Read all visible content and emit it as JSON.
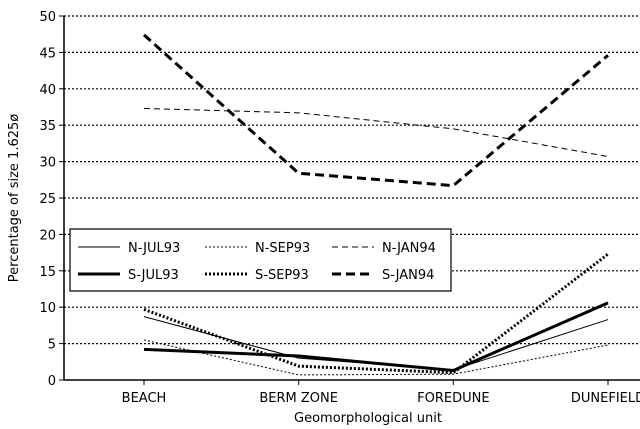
{
  "chart_data": {
    "type": "line",
    "xlabel": "Geomorphological unit",
    "ylabel": "Percentage of size 1.625ø",
    "categories": [
      "BEACH",
      "BERM ZONE",
      "FOREDUNE",
      "DUNEFIELD"
    ],
    "ylim": [
      0,
      50
    ],
    "yticks": [
      0,
      5,
      10,
      15,
      20,
      25,
      30,
      35,
      40,
      45,
      50
    ],
    "grid": "horizontal dotted",
    "legend_placement": "left-middle",
    "series": [
      {
        "name": "N-JUL93",
        "values": [
          8.7,
          3.0,
          1.4,
          8.3
        ],
        "style": "solid",
        "weight": "thin"
      },
      {
        "name": "N-SEP93",
        "values": [
          5.5,
          0.7,
          0.8,
          4.8
        ],
        "style": "dotted",
        "weight": "thin"
      },
      {
        "name": "N-JAN94",
        "values": [
          37.3,
          36.7,
          34.5,
          30.7
        ],
        "style": "dashed",
        "weight": "thin"
      },
      {
        "name": "S-JUL93",
        "values": [
          4.2,
          3.3,
          1.3,
          10.6
        ],
        "style": "solid",
        "weight": "thick"
      },
      {
        "name": "S-SEP93",
        "values": [
          9.7,
          1.9,
          1.0,
          17.3
        ],
        "style": "dotted",
        "weight": "thick"
      },
      {
        "name": "S-JAN94",
        "values": [
          47.4,
          28.4,
          26.7,
          44.6
        ],
        "style": "dashed",
        "weight": "thick"
      }
    ]
  }
}
